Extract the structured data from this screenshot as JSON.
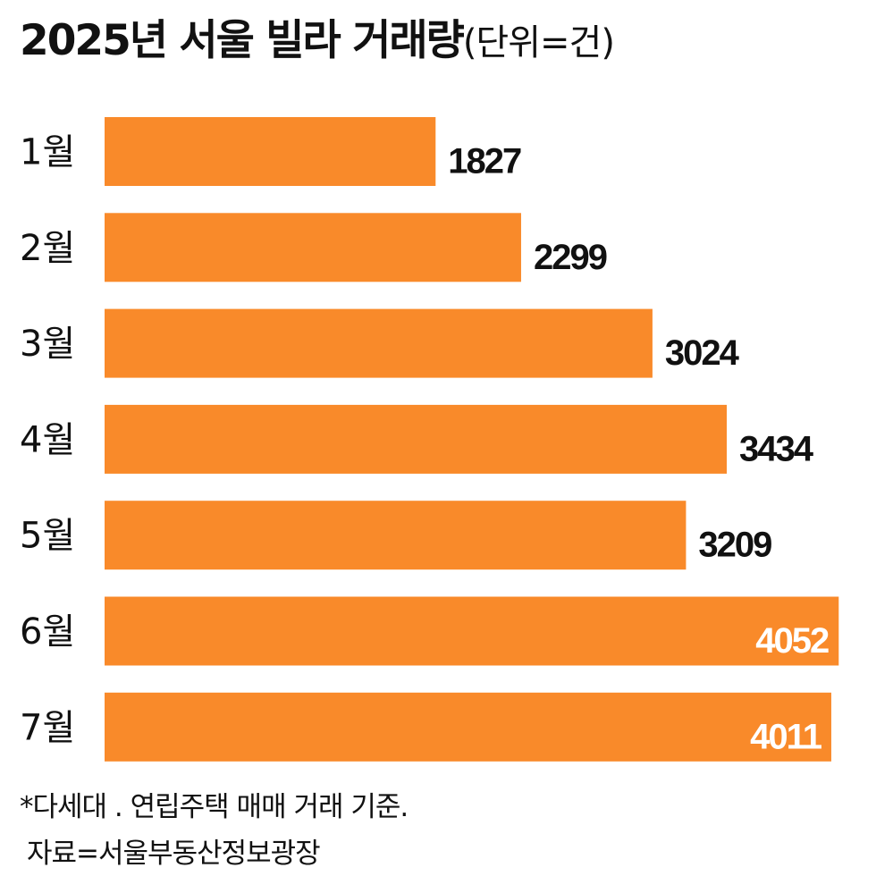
{
  "chart_data": {
    "type": "bar",
    "orientation": "horizontal",
    "title": "2025년 서울 빌라 거래량",
    "unit": "(단위=건)",
    "categories": [
      "1월",
      "2월",
      "3월",
      "4월",
      "5월",
      "6월",
      "7월"
    ],
    "values": [
      1827,
      2299,
      3024,
      3434,
      3209,
      4052,
      4011
    ],
    "value_labels": [
      "1827",
      "2299",
      "3024",
      "3434",
      "3209",
      "4052",
      "4011"
    ],
    "xlim": [
      0,
      4100
    ],
    "grid": false,
    "legend": "none"
  },
  "colors": {
    "bar": "#F98A2A",
    "label_outside": "#111111",
    "label_inside": "#ffffff"
  },
  "notes": {
    "footnote": "*다세대 . 연립주택 매매 거래 기준.",
    "source": "자료=서울부동산정보광장"
  }
}
